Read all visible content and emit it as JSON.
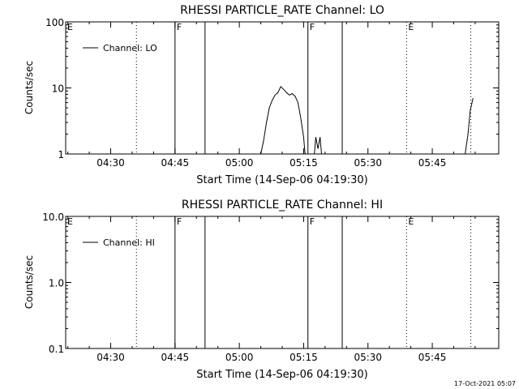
{
  "footer_timestamp": "17-Oct-2021 05:07",
  "chart_data": [
    {
      "type": "line",
      "title": "RHESSI PARTICLE_RATE Channel: LO",
      "xlabel": "Start Time (14-Sep-06 04:19:30)",
      "ylabel": "Counts/sec",
      "yscale": "log",
      "ylim": [
        1,
        100
      ],
      "yticks": [
        1,
        10,
        100
      ],
      "ytick_labels": [
        "1",
        "10",
        "100"
      ],
      "xlim": [
        "04:19:30",
        "06:00:30"
      ],
      "xticks": [
        "04:30",
        "04:45",
        "05:00",
        "05:15",
        "05:30",
        "05:45"
      ],
      "legend": {
        "label": "Channel: LO",
        "position": "top-left"
      },
      "markers": [
        {
          "time": "04:19:30",
          "label": "E",
          "style": "dotted"
        },
        {
          "time": "04:36",
          "label": "",
          "style": "dotted"
        },
        {
          "time": "04:45",
          "label": "F",
          "style": "solid"
        },
        {
          "time": "04:52",
          "label": "",
          "style": "solid"
        },
        {
          "time": "05:16",
          "label": "F",
          "style": "solid"
        },
        {
          "time": "05:24",
          "label": "",
          "style": "solid"
        },
        {
          "time": "05:39",
          "label": "E",
          "style": "dotted"
        },
        {
          "time": "05:54",
          "label": "",
          "style": "dotted"
        }
      ],
      "series": [
        {
          "name": "Channel: LO",
          "segments": [
            [
              [
                "05:05:00",
                1.0
              ],
              [
                "05:05:40",
                1.6
              ],
              [
                "05:06:20",
                3.0
              ],
              [
                "05:07:00",
                5.0
              ],
              [
                "05:07:40",
                6.5
              ],
              [
                "05:08:20",
                7.8
              ],
              [
                "05:09:00",
                8.5
              ],
              [
                "05:09:40",
                10.5
              ],
              [
                "05:10:20",
                9.5
              ],
              [
                "05:11:00",
                8.5
              ],
              [
                "05:11:40",
                7.8
              ],
              [
                "05:12:20",
                8.2
              ],
              [
                "05:13:00",
                7.5
              ],
              [
                "05:13:40",
                6.0
              ],
              [
                "05:14:20",
                3.5
              ],
              [
                "05:15:00",
                1.8
              ],
              [
                "05:15:20",
                1.0
              ]
            ],
            [
              [
                "05:17:30",
                1.0
              ],
              [
                "05:17:50",
                1.8
              ],
              [
                "05:18:20",
                1.2
              ],
              [
                "05:18:50",
                1.8
              ],
              [
                "05:19:10",
                1.0
              ]
            ],
            [
              [
                "05:52:40",
                1.0
              ],
              [
                "05:53:20",
                2.0
              ],
              [
                "05:53:50",
                4.5
              ],
              [
                "05:54:30",
                7.0
              ]
            ]
          ]
        }
      ]
    },
    {
      "type": "line",
      "title": "RHESSI PARTICLE_RATE Channel: HI",
      "xlabel": "Start Time (14-Sep-06 04:19:30)",
      "ylabel": "Counts/sec",
      "yscale": "log",
      "ylim": [
        0.1,
        10
      ],
      "yticks": [
        0.1,
        1,
        10
      ],
      "ytick_labels": [
        "0.1",
        "1.0",
        "10.0"
      ],
      "xlim": [
        "04:19:30",
        "06:00:30"
      ],
      "xticks": [
        "04:30",
        "04:45",
        "05:00",
        "05:15",
        "05:30",
        "05:45"
      ],
      "legend": {
        "label": "Channel: HI",
        "position": "top-left"
      },
      "markers": [
        {
          "time": "04:19:30",
          "label": "E",
          "style": "dotted"
        },
        {
          "time": "04:36",
          "label": "",
          "style": "dotted"
        },
        {
          "time": "04:45",
          "label": "F",
          "style": "solid"
        },
        {
          "time": "04:52",
          "label": "",
          "style": "solid"
        },
        {
          "time": "05:16",
          "label": "F",
          "style": "solid"
        },
        {
          "time": "05:24",
          "label": "",
          "style": "solid"
        },
        {
          "time": "05:39",
          "label": "E",
          "style": "dotted"
        },
        {
          "time": "05:54",
          "label": "",
          "style": "dotted"
        }
      ],
      "series": [
        {
          "name": "Channel: HI",
          "segments": []
        }
      ]
    }
  ]
}
